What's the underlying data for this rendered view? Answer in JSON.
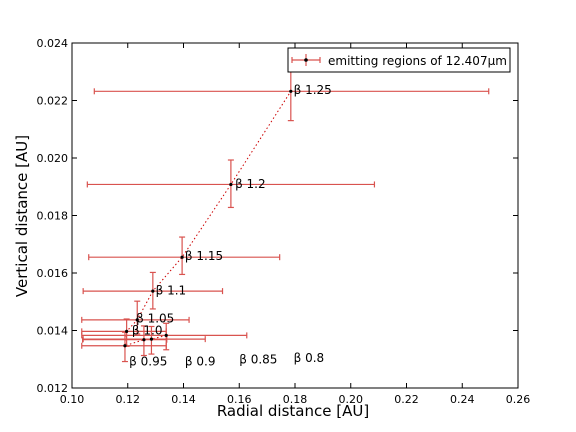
{
  "chart_data": {
    "type": "scatter",
    "xlabel": "Radial distance [AU]",
    "ylabel": "Vertical distance [AU]",
    "xlim": [
      0.1,
      0.26
    ],
    "ylim": [
      0.012,
      0.024
    ],
    "xticks": [
      "0.10",
      "0.12",
      "0.14",
      "0.16",
      "0.18",
      "0.20",
      "0.22",
      "0.24",
      "0.26"
    ],
    "yticks": [
      "0.012",
      "0.014",
      "0.016",
      "0.018",
      "0.020",
      "0.022",
      "0.024"
    ],
    "grid": false,
    "legend": {
      "position": "top-right",
      "label": "emitting regions of 12.407μm"
    },
    "series_color": "#d9534f",
    "line_color": "#cc0000",
    "marker_color": "#000000",
    "points": [
      {
        "label": "β 0.8",
        "x": 0.1338,
        "y": 0.01383,
        "xerr": [
          0.1035,
          0.1627
        ],
        "yerr": [
          0.01333,
          0.01425
        ]
      },
      {
        "label": "β 0.85",
        "x": 0.1285,
        "y": 0.0137,
        "xerr": [
          0.104,
          0.1478
        ],
        "yerr": [
          0.01318,
          0.01414
        ]
      },
      {
        "label": "β 0.9",
        "x": 0.1258,
        "y": 0.01368,
        "xerr": [
          0.1038,
          0.134
        ],
        "yerr": [
          0.01313,
          0.01416
        ]
      },
      {
        "label": "β 0.95",
        "x": 0.119,
        "y": 0.01347,
        "xerr": [
          0.1035,
          0.1338
        ],
        "yerr": [
          0.01292,
          0.01394
        ]
      },
      {
        "label": "β 1.0",
        "x": 0.1196,
        "y": 0.01397,
        "xerr": [
          0.1035,
          0.1338
        ],
        "yerr": [
          0.01345,
          0.0144
        ]
      },
      {
        "label": "β 1.05",
        "x": 0.1234,
        "y": 0.01437,
        "xerr": [
          0.1035,
          0.142
        ],
        "yerr": [
          0.01388,
          0.01502
        ]
      },
      {
        "label": "β 1.1",
        "x": 0.129,
        "y": 0.01537,
        "xerr": [
          0.104,
          0.154
        ],
        "yerr": [
          0.01475,
          0.01602
        ]
      },
      {
        "label": "β 1.15",
        "x": 0.1395,
        "y": 0.01655,
        "xerr": [
          0.106,
          0.1745
        ],
        "yerr": [
          0.01595,
          0.01725
        ]
      },
      {
        "label": "β 1.2",
        "x": 0.157,
        "y": 0.01908,
        "xerr": [
          0.1055,
          0.2085
        ],
        "yerr": [
          0.01828,
          0.01993
        ]
      },
      {
        "label": "β 1.25",
        "x": 0.1785,
        "y": 0.02232,
        "xerr": [
          0.108,
          0.2495
        ],
        "yerr": [
          0.0213,
          0.02307
        ]
      }
    ],
    "annotations": [
      {
        "text": "β 1.25",
        "x": 0.1795,
        "y": 0.02237,
        "anchor": "start"
      },
      {
        "text": "β 1.2",
        "x": 0.1585,
        "y": 0.0191,
        "anchor": "start"
      },
      {
        "text": "β 1.15",
        "x": 0.1405,
        "y": 0.0166,
        "anchor": "start"
      },
      {
        "text": "β 1.1",
        "x": 0.13,
        "y": 0.0154,
        "anchor": "start"
      },
      {
        "text": "β 1.05",
        "x": 0.123,
        "y": 0.01442,
        "anchor": "start"
      },
      {
        "text": "β 1.0",
        "x": 0.1215,
        "y": 0.014,
        "anchor": "start"
      },
      {
        "text": "β 0.95",
        "x": 0.1205,
        "y": 0.01292,
        "anchor": "start"
      },
      {
        "text": "β 0.9",
        "x": 0.1405,
        "y": 0.01292,
        "anchor": "start"
      },
      {
        "text": "β 0.85",
        "x": 0.16,
        "y": 0.013,
        "anchor": "start"
      },
      {
        "text": "β 0.8",
        "x": 0.1795,
        "y": 0.01305,
        "anchor": "start"
      }
    ]
  }
}
